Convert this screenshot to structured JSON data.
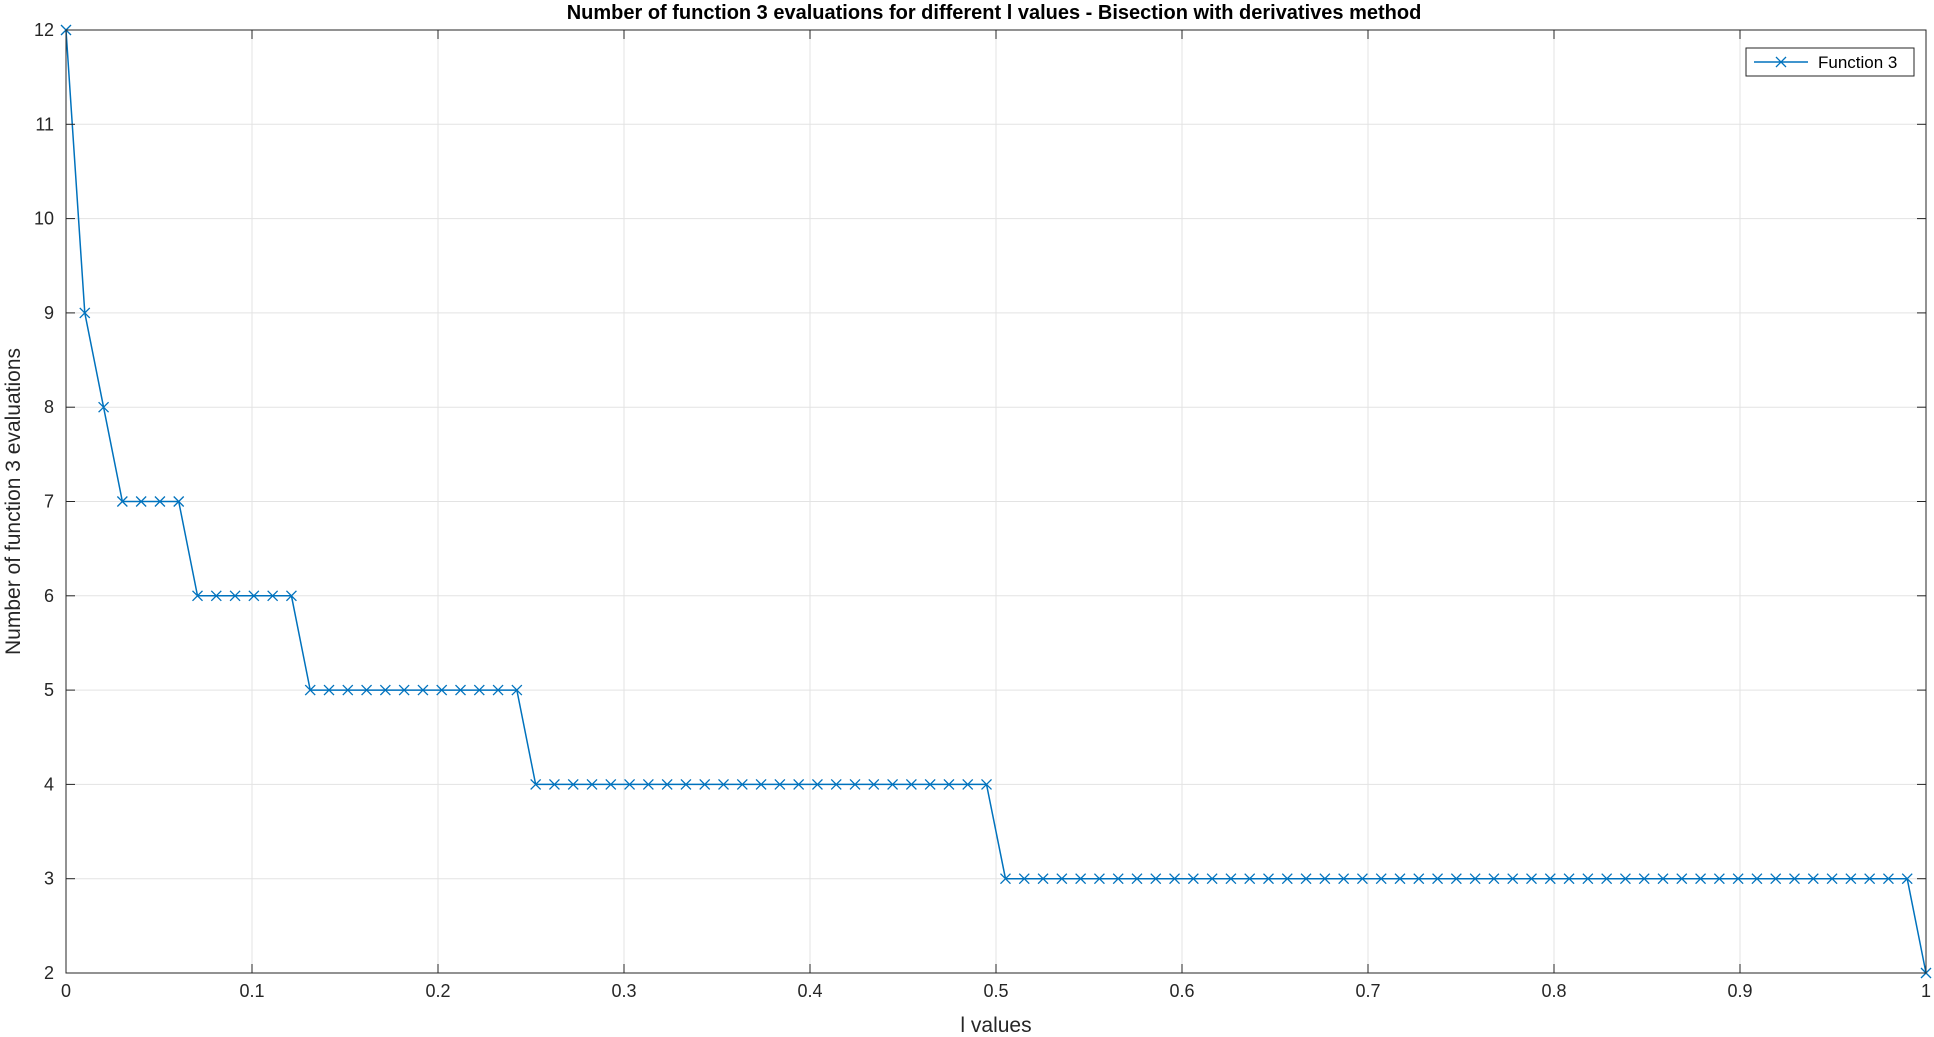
{
  "chart_data": {
    "type": "line",
    "title": "Number of function 3 evaluations for different l values - Bisection with derivatives method",
    "xlabel": "l values",
    "ylabel": "Number of function 3 evaluations",
    "xlim": [
      0,
      1
    ],
    "ylim": [
      2,
      12
    ],
    "xticks": [
      0,
      0.1,
      0.2,
      0.3,
      0.4,
      0.5,
      0.6,
      0.7,
      0.8,
      0.9,
      1
    ],
    "xtick_labels": [
      "0",
      "0.1",
      "0.2",
      "0.3",
      "0.4",
      "0.5",
      "0.6",
      "0.7",
      "0.8",
      "0.9",
      "1"
    ],
    "yticks": [
      2,
      3,
      4,
      5,
      6,
      7,
      8,
      9,
      10,
      11,
      12
    ],
    "ytick_labels": [
      "2",
      "3",
      "4",
      "5",
      "6",
      "7",
      "8",
      "9",
      "10",
      "11",
      "12"
    ],
    "grid": true,
    "legend_position": "top-right",
    "series": [
      {
        "name": "Function 3",
        "color": "#0072bd",
        "marker": "x",
        "x": [
          0,
          0.0101,
          0.0202,
          0.0303,
          0.0404,
          0.0505,
          0.0606,
          0.0707,
          0.0808,
          0.0909,
          0.101,
          0.1111,
          0.1212,
          0.1313,
          0.1414,
          0.1515,
          0.1616,
          0.1717,
          0.1818,
          0.1919,
          0.202,
          0.2121,
          0.2222,
          0.2323,
          0.2424,
          0.2525,
          0.2626,
          0.2727,
          0.2828,
          0.2929,
          0.303,
          0.3131,
          0.3232,
          0.3333,
          0.3434,
          0.3535,
          0.3636,
          0.3737,
          0.3838,
          0.3939,
          0.404,
          0.4141,
          0.4242,
          0.4343,
          0.4444,
          0.4545,
          0.4646,
          0.4747,
          0.4848,
          0.4949,
          0.5051,
          0.5152,
          0.5253,
          0.5354,
          0.5455,
          0.5556,
          0.5657,
          0.5758,
          0.5859,
          0.596,
          0.6061,
          0.6162,
          0.6263,
          0.6364,
          0.6465,
          0.6566,
          0.6667,
          0.6768,
          0.6869,
          0.697,
          0.7071,
          0.7172,
          0.7273,
          0.7374,
          0.7475,
          0.7576,
          0.7677,
          0.7778,
          0.7879,
          0.798,
          0.8081,
          0.8182,
          0.8283,
          0.8384,
          0.8485,
          0.8586,
          0.8687,
          0.8788,
          0.8889,
          0.899,
          0.9091,
          0.9192,
          0.9293,
          0.9394,
          0.9495,
          0.9596,
          0.9697,
          0.9798,
          0.9899,
          1.0
        ],
        "y": [
          12,
          9,
          8,
          7,
          7,
          7,
          7,
          6,
          6,
          6,
          6,
          6,
          6,
          5,
          5,
          5,
          5,
          5,
          5,
          5,
          5,
          5,
          5,
          5,
          5,
          4,
          4,
          4,
          4,
          4,
          4,
          4,
          4,
          4,
          4,
          4,
          4,
          4,
          4,
          4,
          4,
          4,
          4,
          4,
          4,
          4,
          4,
          4,
          4,
          4,
          3,
          3,
          3,
          3,
          3,
          3,
          3,
          3,
          3,
          3,
          3,
          3,
          3,
          3,
          3,
          3,
          3,
          3,
          3,
          3,
          3,
          3,
          3,
          3,
          3,
          3,
          3,
          3,
          3,
          3,
          3,
          3,
          3,
          3,
          3,
          3,
          3,
          3,
          3,
          3,
          3,
          3,
          3,
          3,
          3,
          3,
          3,
          3,
          3,
          2
        ]
      }
    ]
  }
}
